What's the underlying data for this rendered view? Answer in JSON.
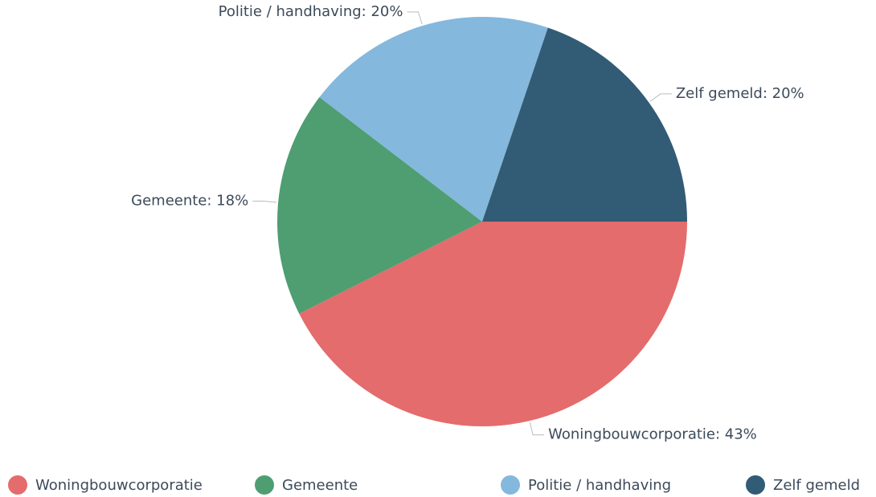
{
  "chart_data": {
    "type": "pie",
    "categories": [
      "Woningbouwcorporatie",
      "Gemeente",
      "Politie / handhaving",
      "Zelf gemeld"
    ],
    "values": [
      43,
      18,
      20,
      20
    ],
    "value_labels": [
      "Woningbouwcorporatie: 43%",
      "Gemeente: 18%",
      "Politie / handhaving: 20%",
      "Zelf gemeld: 20%"
    ],
    "colors": [
      "#e46c6c",
      "#4e9e72",
      "#85b8dd",
      "#325b75"
    ],
    "legend": "bottom"
  }
}
